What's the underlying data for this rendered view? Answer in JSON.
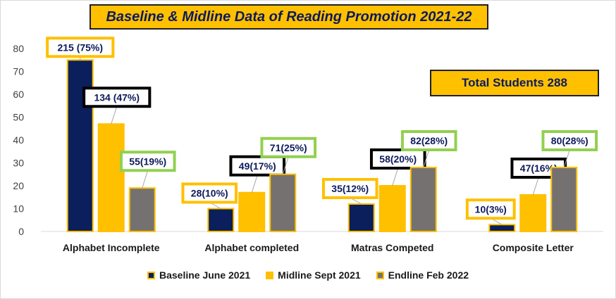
{
  "title": "Baseline & Midline Data of Reading Promotion 2021-22",
  "total_label": "Total Students 288",
  "chart_data": {
    "type": "bar",
    "title": "Baseline & Midline Data of Reading Promotion 2021-22",
    "categories": [
      "Alphabet Incomplete",
      "Alphabet completed",
      "Matras Competed",
      "Composite Letter"
    ],
    "ylim": [
      0,
      80
    ],
    "yticks": [
      0,
      10,
      20,
      30,
      40,
      50,
      60,
      70,
      80
    ],
    "grid": false,
    "legend_position": "bottom",
    "series": [
      {
        "name": "Baseline June 2021",
        "color": "#0b1f5c",
        "values": [
          75,
          10,
          12,
          3
        ],
        "labels": [
          "215 (75%)",
          "28(10%)",
          "35(12%)",
          "10(3%)"
        ],
        "label_border": "#ffc000"
      },
      {
        "name": "Midline Sept 2021",
        "color": "#ffc000",
        "values": [
          47,
          17,
          20,
          16
        ],
        "labels": [
          "134 (47%)",
          "49(17%)",
          "58(20%)",
          "47(16%)"
        ],
        "label_border": "#000000"
      },
      {
        "name": "Endline Feb 2022",
        "color": "#767171",
        "values": [
          19,
          25,
          28,
          28
        ],
        "labels": [
          "55(19%)",
          "71(25%)",
          "82(28%)",
          "80(28%)"
        ],
        "label_border": "#92d050"
      }
    ]
  }
}
